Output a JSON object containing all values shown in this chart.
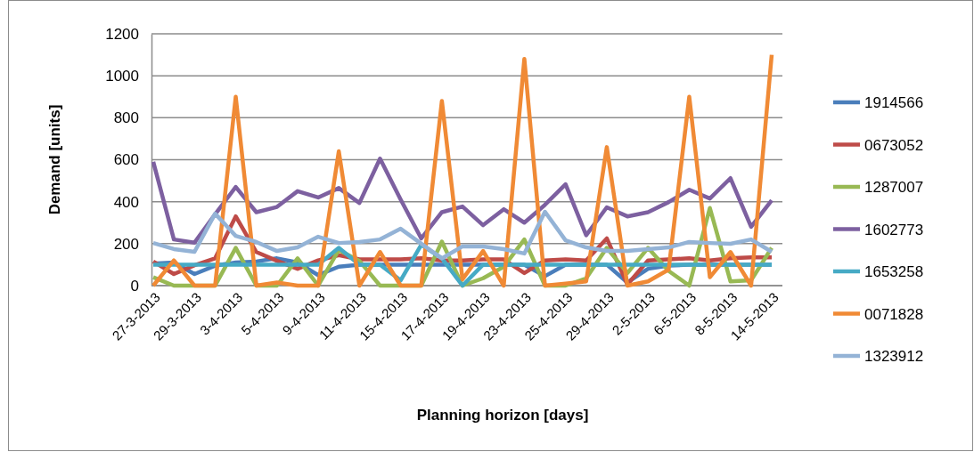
{
  "chart_data": {
    "type": "line",
    "xlabel": "Planning horizon [days]",
    "ylabel": "Demand [units]",
    "categories": [
      "27-3-2013",
      null,
      "29-3-2013",
      null,
      "3-4-2013",
      null,
      "5-4-2013",
      null,
      "9-4-2013",
      null,
      "11-4-2013",
      null,
      "15-4-2013",
      null,
      "17-4-2013",
      null,
      "19-4-2013",
      null,
      "23-4-2013",
      null,
      "25-4-2013",
      null,
      "29-4-2013",
      null,
      "2-5-2013",
      null,
      "6-5-2013",
      null,
      "8-5-2013",
      null,
      "14-5-2013"
    ],
    "series": [
      {
        "name": "1914566",
        "color": "#4a7ebb",
        "values": [
          105,
          110,
          55,
          95,
          110,
          115,
          130,
          110,
          50,
          90,
          100,
          100,
          100,
          100,
          100,
          100,
          100,
          100,
          100,
          45,
          100,
          100,
          100,
          15,
          80,
          95,
          100,
          100,
          100,
          100,
          100
        ]
      },
      {
        "name": "0673052",
        "color": "#be4b48",
        "values": [
          115,
          55,
          97,
          130,
          330,
          160,
          118,
          80,
          120,
          145,
          125,
          125,
          125,
          130,
          120,
          120,
          125,
          125,
          60,
          120,
          125,
          120,
          225,
          5,
          120,
          125,
          130,
          120,
          130,
          135,
          135
        ]
      },
      {
        "name": "1287007",
        "color": "#98b954",
        "values": [
          40,
          0,
          0,
          0,
          180,
          0,
          0,
          130,
          0,
          170,
          118,
          0,
          0,
          0,
          210,
          0,
          35,
          90,
          220,
          0,
          0,
          35,
          180,
          60,
          180,
          70,
          0,
          370,
          20,
          25,
          180
        ]
      },
      {
        "name": "1602773",
        "color": "#7d60a0",
        "values": [
          590,
          220,
          205,
          340,
          470,
          350,
          375,
          450,
          420,
          465,
          394,
          605,
          410,
          225,
          350,
          377,
          288,
          364,
          300,
          385,
          483,
          240,
          373,
          330,
          350,
          398,
          457,
          415,
          512,
          280,
          407
        ]
      },
      {
        "name": "1653258",
        "color": "#46aac5",
        "values": [
          100,
          100,
          100,
          100,
          100,
          100,
          100,
          100,
          100,
          180,
          100,
          100,
          25,
          195,
          130,
          0,
          100,
          100,
          100,
          100,
          100,
          100,
          100,
          100,
          100,
          100,
          100,
          100,
          100,
          100,
          100
        ]
      },
      {
        "name": "0071828",
        "color": "#f08a35",
        "values": [
          0,
          120,
          0,
          0,
          900,
          0,
          15,
          0,
          0,
          640,
          0,
          160,
          0,
          0,
          880,
          30,
          165,
          0,
          1080,
          0,
          10,
          20,
          660,
          0,
          20,
          76,
          900,
          40,
          160,
          0,
          1100
        ]
      },
      {
        "name": "1323912",
        "color": "#94b3d6",
        "values": [
          203,
          174,
          161,
          343,
          237,
          208,
          165,
          182,
          233,
          203,
          208,
          220,
          271,
          200,
          130,
          187,
          187,
          174,
          153,
          352,
          216,
          182,
          165,
          165,
          174,
          182,
          208,
          203,
          199,
          220,
          161
        ]
      }
    ],
    "ylim": [
      0,
      1200
    ],
    "yticks": [
      0,
      200,
      400,
      600,
      800,
      1000,
      1200
    ],
    "grid": "y",
    "legend": "right",
    "marker": "none",
    "line_style": "solid"
  }
}
